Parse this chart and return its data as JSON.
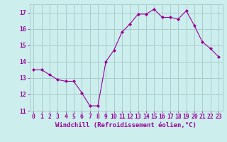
{
  "x": [
    0,
    1,
    2,
    3,
    4,
    5,
    6,
    7,
    8,
    9,
    10,
    11,
    12,
    13,
    14,
    15,
    16,
    17,
    18,
    19,
    20,
    21,
    22,
    23
  ],
  "y": [
    13.5,
    13.5,
    13.2,
    12.9,
    12.8,
    12.8,
    12.1,
    11.3,
    11.3,
    14.0,
    14.7,
    15.8,
    16.3,
    16.9,
    16.9,
    17.2,
    16.7,
    16.7,
    16.6,
    17.1,
    16.2,
    15.2,
    14.8,
    14.3
  ],
  "line_color": "#990099",
  "marker": "D",
  "marker_size": 2.0,
  "bg_color": "#cceeed",
  "grid_color": "#aacccc",
  "xlabel": "Windchill (Refroidissement éolien,°C)",
  "ylabel": "",
  "ylim": [
    11,
    17.5
  ],
  "xlim": [
    -0.5,
    23.5
  ],
  "yticks": [
    11,
    12,
    13,
    14,
    15,
    16,
    17
  ],
  "xticks": [
    0,
    1,
    2,
    3,
    4,
    5,
    6,
    7,
    8,
    9,
    10,
    11,
    12,
    13,
    14,
    15,
    16,
    17,
    18,
    19,
    20,
    21,
    22,
    23
  ],
  "tick_color": "#990099",
  "label_color": "#990099",
  "axis_fontsize": 6.5,
  "tick_fontsize": 5.8
}
